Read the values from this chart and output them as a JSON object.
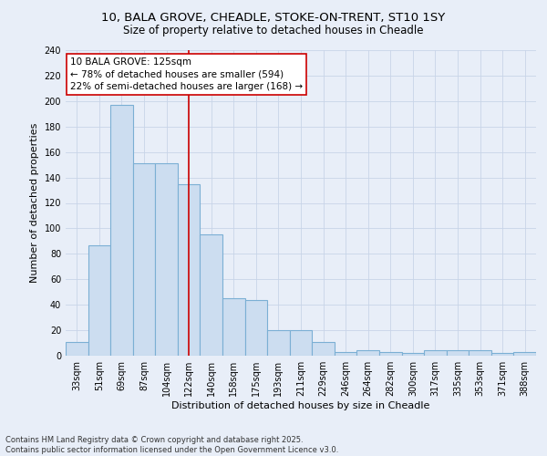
{
  "title_line1": "10, BALA GROVE, CHEADLE, STOKE-ON-TRENT, ST10 1SY",
  "title_line2": "Size of property relative to detached houses in Cheadle",
  "xlabel": "Distribution of detached houses by size in Cheadle",
  "ylabel": "Number of detached properties",
  "categories": [
    "33sqm",
    "51sqm",
    "69sqm",
    "87sqm",
    "104sqm",
    "122sqm",
    "140sqm",
    "158sqm",
    "175sqm",
    "193sqm",
    "211sqm",
    "229sqm",
    "246sqm",
    "264sqm",
    "282sqm",
    "300sqm",
    "317sqm",
    "335sqm",
    "353sqm",
    "371sqm",
    "388sqm"
  ],
  "values": [
    11,
    87,
    197,
    151,
    151,
    135,
    95,
    45,
    44,
    20,
    20,
    11,
    3,
    4,
    3,
    2,
    4,
    4,
    4,
    2,
    3
  ],
  "bar_color": "#ccddf0",
  "bar_edge_color": "#7bafd4",
  "bar_edge_width": 0.8,
  "vline_color": "#cc0000",
  "vline_x_index": 5,
  "annotation_text": "10 BALA GROVE: 125sqm\n← 78% of detached houses are smaller (594)\n22% of semi-detached houses are larger (168) →",
  "annotation_box_color": "#ffffff",
  "annotation_box_edge": "#cc0000",
  "ylim": [
    0,
    240
  ],
  "yticks": [
    0,
    20,
    40,
    60,
    80,
    100,
    120,
    140,
    160,
    180,
    200,
    220,
    240
  ],
  "grid_color": "#c8d4e8",
  "bg_color": "#e8eef8",
  "footnote": "Contains HM Land Registry data © Crown copyright and database right 2025.\nContains public sector information licensed under the Open Government Licence v3.0.",
  "title_fontsize": 9.5,
  "subtitle_fontsize": 8.5,
  "axis_label_fontsize": 8,
  "tick_fontsize": 7,
  "annotation_fontsize": 7.5,
  "footnote_fontsize": 6
}
